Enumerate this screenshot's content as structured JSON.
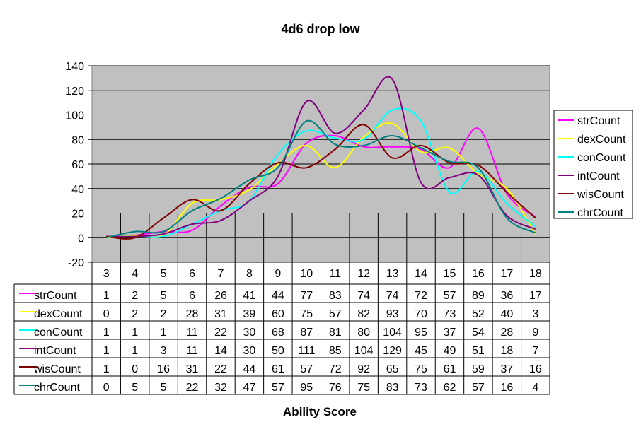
{
  "chart_data": {
    "type": "line",
    "title": "4d6 drop low",
    "xlabel": "Ability Score",
    "ylabel": "",
    "ylim": [
      -20,
      140
    ],
    "yticks": [
      -20,
      0,
      20,
      40,
      60,
      80,
      100,
      120,
      140
    ],
    "grid": true,
    "legend": "right",
    "data_table": true,
    "categories": [
      "3",
      "4",
      "5",
      "6",
      "7",
      "8",
      "9",
      "10",
      "11",
      "12",
      "13",
      "14",
      "15",
      "16",
      "17",
      "18"
    ],
    "series": [
      {
        "name": "strCount",
        "color": "#ff00ff",
        "values": [
          1,
          2,
          5,
          6,
          26,
          41,
          44,
          77,
          83,
          74,
          74,
          72,
          57,
          89,
          36,
          17
        ]
      },
      {
        "name": "dexCount",
        "color": "#ffff00",
        "values": [
          0,
          2,
          2,
          28,
          31,
          39,
          60,
          75,
          57,
          82,
          93,
          70,
          73,
          52,
          40,
          3
        ]
      },
      {
        "name": "conCount",
        "color": "#00ffff",
        "values": [
          1,
          1,
          1,
          11,
          22,
          30,
          68,
          87,
          81,
          80,
          104,
          95,
          37,
          54,
          28,
          9
        ]
      },
      {
        "name": "intCount",
        "color": "#800080",
        "values": [
          1,
          1,
          3,
          11,
          14,
          30,
          50,
          111,
          85,
          104,
          129,
          45,
          49,
          51,
          18,
          7
        ]
      },
      {
        "name": "wisCount",
        "color": "#800000",
        "values": [
          1,
          0,
          16,
          31,
          22,
          44,
          61,
          57,
          72,
          92,
          65,
          75,
          61,
          59,
          37,
          16
        ]
      },
      {
        "name": "chrCount",
        "color": "#008080",
        "values": [
          0,
          5,
          5,
          22,
          32,
          47,
          57,
          95,
          76,
          75,
          83,
          73,
          62,
          57,
          16,
          4
        ]
      }
    ],
    "plot_area_color": "#c0c0c0"
  }
}
